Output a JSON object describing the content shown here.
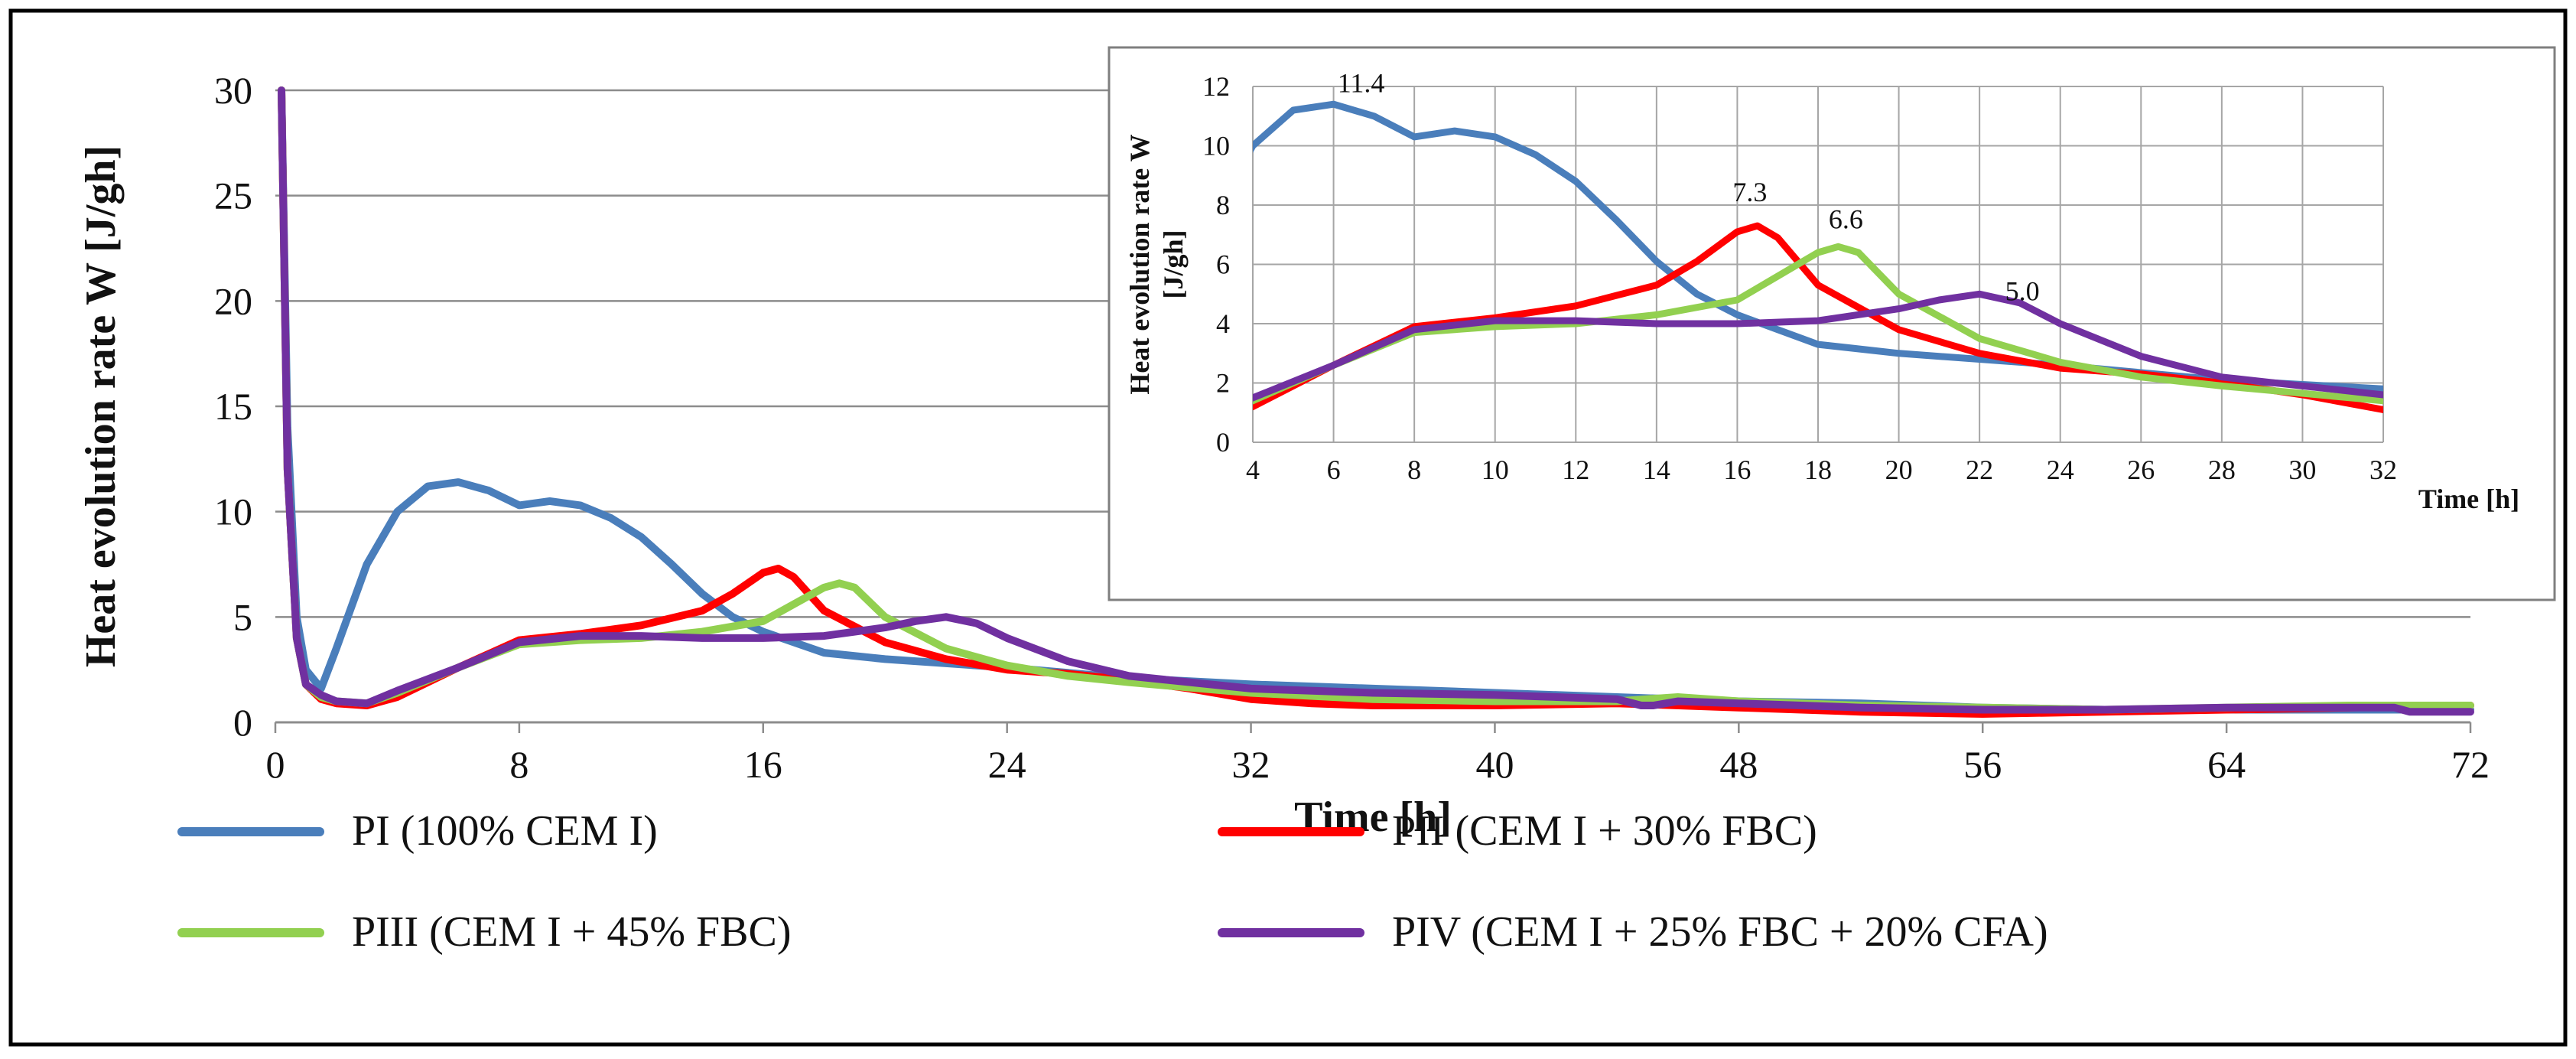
{
  "chart_data": [
    {
      "type": "line",
      "xlabel": "Time [h]",
      "ylabel": "Heat evolution rate W [J/gh]",
      "xlim": [
        0,
        72
      ],
      "ylim": [
        0,
        30
      ],
      "xticks": [
        0,
        8,
        16,
        24,
        32,
        40,
        48,
        56,
        64,
        72
      ],
      "yticks": [
        0,
        5,
        10,
        15,
        20,
        25,
        30
      ],
      "grid": "horizontal",
      "legend": "bottom",
      "colors": {
        "PI": "#4A7EBB",
        "PII": "#FF0000",
        "PIII": "#92D050",
        "PIV": "#7030A0"
      },
      "series": [
        {
          "name": "PI (100% CEM I)",
          "key": "PI",
          "x": [
            0.2,
            0.4,
            0.7,
            1.0,
            1.5,
            2.0,
            3.0,
            4.0,
            5.0,
            6.0,
            7.0,
            8.0,
            9.0,
            10.0,
            11.0,
            12.0,
            13.0,
            14.0,
            15.0,
            16.0,
            18.0,
            20.0,
            24.0,
            28.0,
            32.0,
            36.0,
            40.0,
            44.0,
            48.0,
            52.0,
            56.0,
            60.0,
            64.0,
            68.0,
            72.0
          ],
          "y": [
            30.0,
            14.0,
            5.0,
            2.5,
            1.6,
            3.5,
            7.5,
            10.0,
            11.2,
            11.4,
            11.0,
            10.3,
            10.5,
            10.3,
            9.7,
            8.8,
            7.5,
            6.1,
            5.0,
            4.3,
            3.3,
            3.0,
            2.6,
            2.1,
            1.8,
            1.6,
            1.4,
            1.2,
            1.0,
            0.9,
            0.7,
            0.6,
            0.6,
            0.6,
            0.6
          ]
        },
        {
          "name": "PII (CEM I + 30% FBC)",
          "key": "PII",
          "x": [
            0.2,
            0.4,
            0.7,
            1.0,
            1.5,
            2.0,
            3.0,
            4.0,
            6.0,
            8.0,
            10.0,
            12.0,
            14.0,
            15.0,
            16.0,
            16.5,
            17.0,
            18.0,
            20.0,
            22.0,
            24.0,
            26.0,
            28.0,
            30.0,
            32.0,
            34.0,
            36.0,
            40.0,
            44.0,
            48.0,
            52.0,
            56.0,
            60.0,
            64.0,
            68.0,
            72.0
          ],
          "y": [
            30.0,
            12.0,
            4.0,
            1.8,
            1.1,
            0.9,
            0.8,
            1.2,
            2.6,
            3.9,
            4.2,
            4.6,
            5.3,
            6.1,
            7.1,
            7.3,
            6.9,
            5.3,
            3.8,
            3.0,
            2.5,
            2.3,
            2.0,
            1.6,
            1.1,
            0.9,
            0.8,
            0.8,
            0.9,
            0.7,
            0.5,
            0.4,
            0.5,
            0.6,
            0.7,
            0.8
          ]
        },
        {
          "name": "PIII (CEM I + 45% FBC)",
          "key": "PIII",
          "x": [
            0.2,
            0.4,
            0.7,
            1.0,
            1.5,
            2.0,
            3.0,
            4.0,
            6.0,
            8.0,
            10.0,
            12.0,
            14.0,
            16.0,
            17.0,
            18.0,
            18.5,
            19.0,
            20.0,
            22.0,
            24.0,
            26.0,
            28.0,
            32.0,
            36.0,
            40.0,
            44.0,
            46.0,
            48.0,
            52.0,
            56.0,
            60.0,
            64.0,
            68.0,
            72.0
          ],
          "y": [
            30.0,
            12.0,
            4.0,
            1.8,
            1.2,
            1.0,
            0.9,
            1.4,
            2.6,
            3.7,
            3.9,
            4.0,
            4.3,
            4.8,
            5.6,
            6.4,
            6.6,
            6.4,
            5.0,
            3.5,
            2.7,
            2.2,
            1.9,
            1.4,
            1.1,
            1.0,
            1.0,
            1.2,
            1.0,
            0.8,
            0.7,
            0.6,
            0.7,
            0.8,
            0.8
          ]
        },
        {
          "name": "PIV (CEM I + 25% FBC + 20% CFA)",
          "key": "PIV",
          "x": [
            0.2,
            0.4,
            0.7,
            1.0,
            1.5,
            2.0,
            3.0,
            4.0,
            6.0,
            8.0,
            10.0,
            12.0,
            14.0,
            16.0,
            18.0,
            20.0,
            21.0,
            22.0,
            23.0,
            24.0,
            26.0,
            28.0,
            32.0,
            36.0,
            40.0,
            44.0,
            44.8,
            45.2,
            46.0,
            48.0,
            52.0,
            56.0,
            60.0,
            64.0,
            68.0,
            69.5,
            70.0,
            72.0
          ],
          "y": [
            30.0,
            12.0,
            4.0,
            1.8,
            1.3,
            1.0,
            0.9,
            1.5,
            2.6,
            3.8,
            4.1,
            4.1,
            4.0,
            4.0,
            4.1,
            4.5,
            4.8,
            5.0,
            4.7,
            4.0,
            2.9,
            2.2,
            1.6,
            1.4,
            1.3,
            1.1,
            0.8,
            0.8,
            1.0,
            0.9,
            0.7,
            0.6,
            0.6,
            0.7,
            0.7,
            0.7,
            0.5,
            0.5
          ]
        }
      ]
    },
    {
      "type": "line",
      "role": "inset",
      "xlabel": "Time [h]",
      "ylabel": "Heat evolution rate W [J/gh]",
      "ylabel_line1": "Heat evolution rate W",
      "ylabel_line2": "[J/gh]",
      "xlim": [
        4,
        32
      ],
      "ylim": [
        0,
        12
      ],
      "xticks": [
        4,
        6,
        8,
        10,
        12,
        14,
        16,
        18,
        20,
        22,
        24,
        26,
        28,
        30,
        32
      ],
      "yticks": [
        0,
        2,
        4,
        6,
        8,
        10,
        12
      ],
      "grid": "both",
      "annotations": [
        {
          "text": "11.4",
          "x": 6.0,
          "y": 11.4,
          "series": "PI"
        },
        {
          "text": "7.3",
          "x": 16.5,
          "y": 7.3,
          "series": "PII"
        },
        {
          "text": "6.6",
          "x": 18.5,
          "y": 6.6,
          "series": "PIII"
        },
        {
          "text": "5.0",
          "x": 22.0,
          "y": 5.0,
          "series": "PIV"
        }
      ]
    }
  ]
}
